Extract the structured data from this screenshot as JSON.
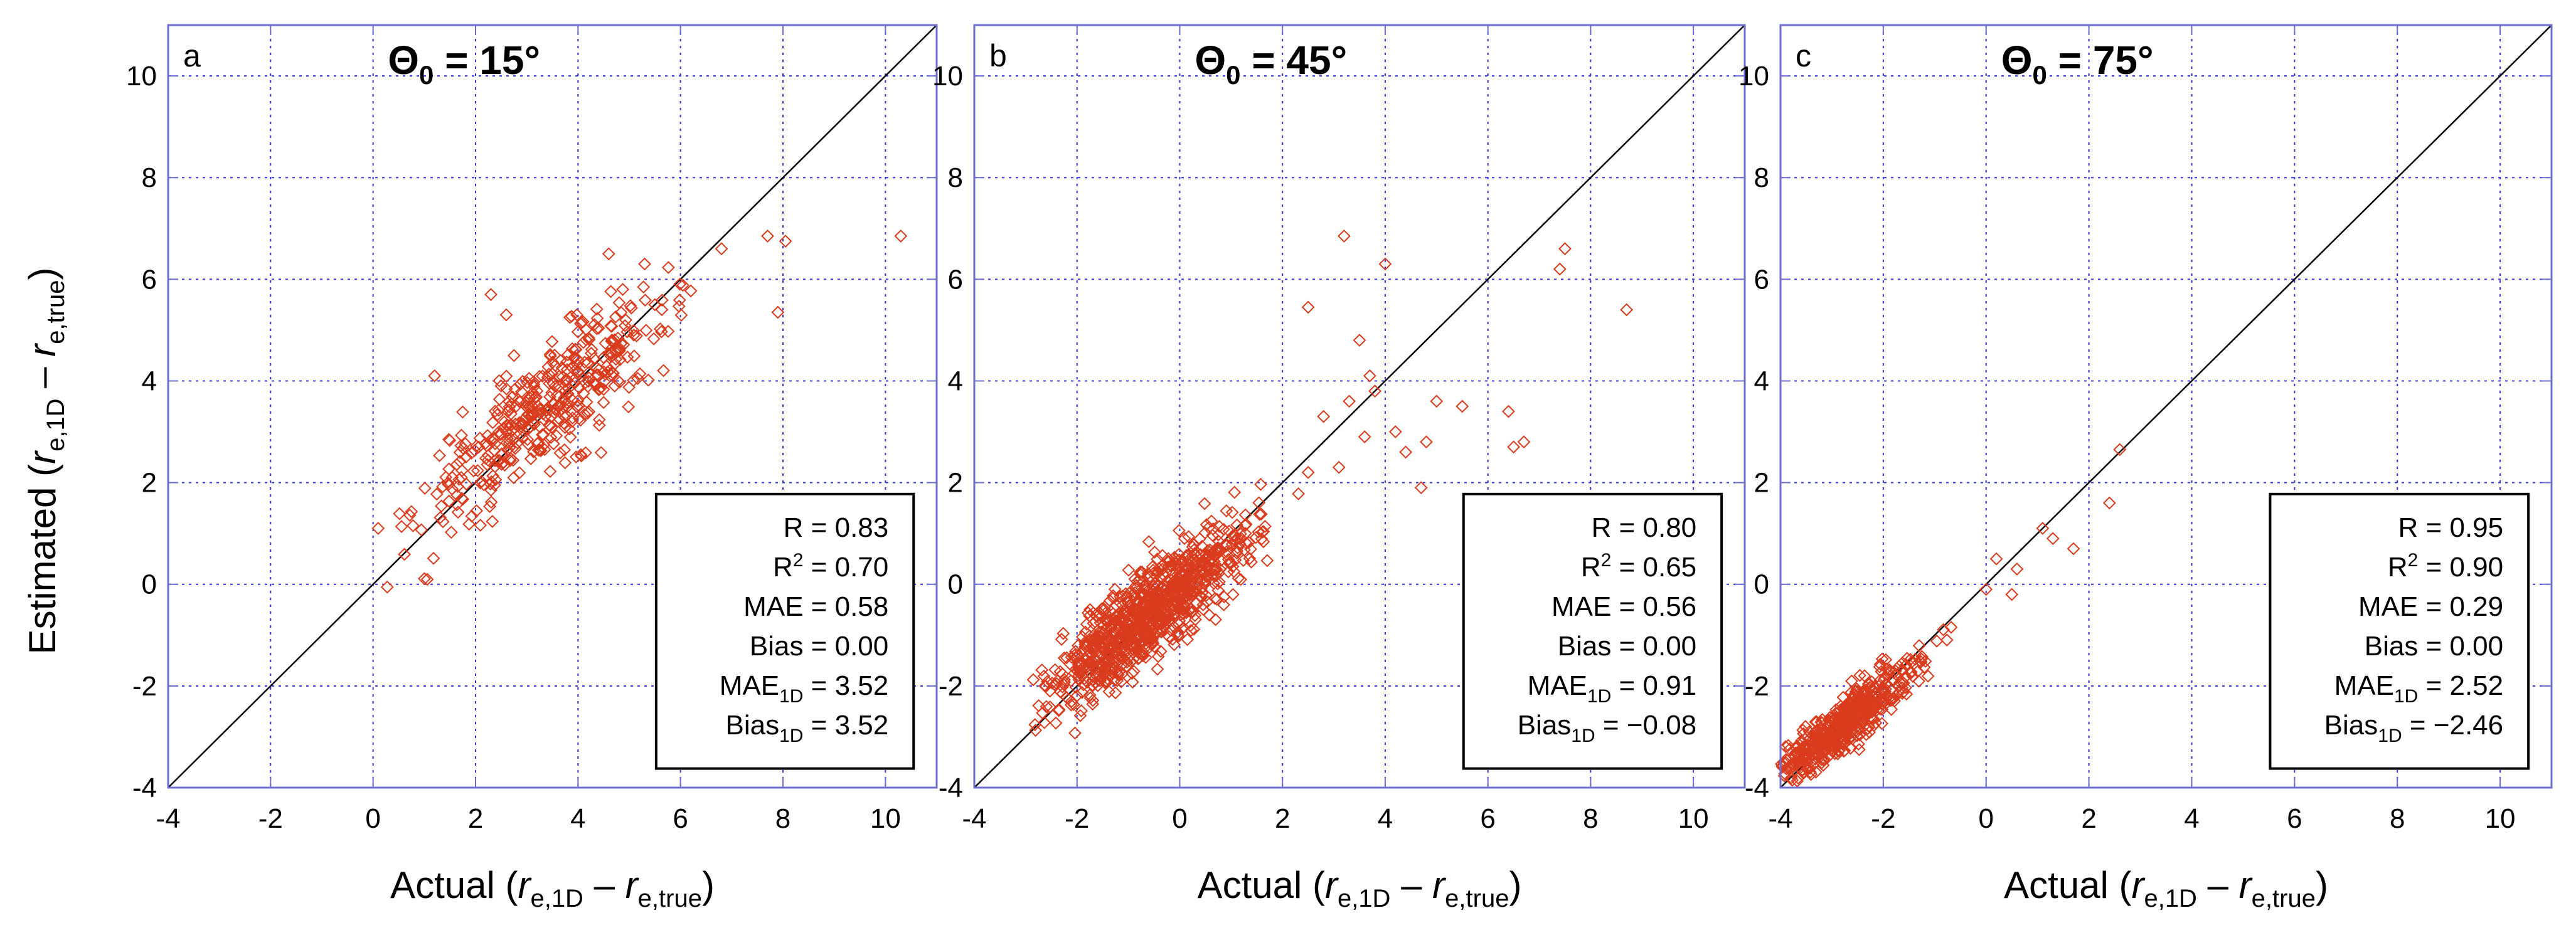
{
  "chart_data": [
    {
      "type": "scatter",
      "panel_letter": "a",
      "title_symbol": "Θ",
      "title_sub": "0",
      "title_value": " = 15°",
      "xlim": [
        -4,
        11
      ],
      "ylim": [
        -4,
        11
      ],
      "xticks": [
        -4,
        -2,
        0,
        2,
        4,
        6,
        8,
        10
      ],
      "yticks": [
        -4,
        -2,
        0,
        2,
        4,
        6,
        8,
        10
      ],
      "grid": true,
      "marker_color": "#d93b1c",
      "line_color": "#000000",
      "cluster": {
        "cx": 3.4,
        "cy": 3.5,
        "sx": 1.2,
        "spread": 0.55,
        "n": 420,
        "xmin": 0.2,
        "xmax": 7.2
      },
      "outliers": [
        [
          10.3,
          6.85
        ],
        [
          8.05,
          6.75
        ],
        [
          7.7,
          6.85
        ],
        [
          6.8,
          6.6
        ],
        [
          7.9,
          5.35
        ],
        [
          2.3,
          5.7
        ],
        [
          2.6,
          5.3
        ],
        [
          1.2,
          4.1
        ],
        [
          0.1,
          1.1
        ],
        [
          4.6,
          6.5
        ],
        [
          5.3,
          6.3
        ]
      ],
      "stats": [
        {
          "label": "R",
          "sub": "",
          "sup": "",
          "value": "0.83"
        },
        {
          "label": "R",
          "sub": "",
          "sup": "2",
          "value": "0.70"
        },
        {
          "label": "MAE",
          "sub": "",
          "sup": "",
          "value": "0.58"
        },
        {
          "label": "Bias",
          "sub": "",
          "sup": "",
          "value": "0.00"
        },
        {
          "label": "MAE",
          "sub": "1D",
          "sup": "",
          "value": "3.52"
        },
        {
          "label": "Bias",
          "sub": "1D",
          "sup": "",
          "value": "3.52"
        }
      ]
    },
    {
      "type": "scatter",
      "panel_letter": "b",
      "title_symbol": "Θ",
      "title_sub": "0",
      "title_value": " = 45°",
      "xlim": [
        -4,
        11
      ],
      "ylim": [
        -4,
        11
      ],
      "xticks": [
        -4,
        -2,
        0,
        2,
        4,
        6,
        8,
        10
      ],
      "yticks": [
        -4,
        -2,
        0,
        2,
        4,
        6,
        8,
        10
      ],
      "grid": true,
      "marker_color": "#d93b1c",
      "line_color": "#000000",
      "cluster": {
        "cx": -0.6,
        "cy": -0.6,
        "sx": 0.9,
        "spread": 0.45,
        "n": 900,
        "xmin": -3.1,
        "xmax": 2.8
      },
      "outliers": [
        [
          3.2,
          6.85
        ],
        [
          4.0,
          6.3
        ],
        [
          7.5,
          6.6
        ],
        [
          7.4,
          6.2
        ],
        [
          8.7,
          5.4
        ],
        [
          2.5,
          5.45
        ],
        [
          3.5,
          4.8
        ],
        [
          3.7,
          4.1
        ],
        [
          3.3,
          3.6
        ],
        [
          4.2,
          3.0
        ],
        [
          5.0,
          3.6
        ],
        [
          5.5,
          3.5
        ],
        [
          6.4,
          3.4
        ],
        [
          6.5,
          2.7
        ],
        [
          6.7,
          2.8
        ],
        [
          4.7,
          1.9
        ],
        [
          4.4,
          2.6
        ],
        [
          3.6,
          2.9
        ],
        [
          2.5,
          2.2
        ],
        [
          3.1,
          2.3
        ],
        [
          4.8,
          2.8
        ],
        [
          2.8,
          3.3
        ],
        [
          3.8,
          3.8
        ]
      ],
      "stats": [
        {
          "label": "R",
          "sub": "",
          "sup": "",
          "value": "0.80"
        },
        {
          "label": "R",
          "sub": "",
          "sup": "2",
          "value": "0.65"
        },
        {
          "label": "MAE",
          "sub": "",
          "sup": "",
          "value": "0.56"
        },
        {
          "label": "Bias",
          "sub": "",
          "sup": "",
          "value": "0.00"
        },
        {
          "label": "MAE",
          "sub": "1D",
          "sup": "",
          "value": "0.91"
        },
        {
          "label": "Bias",
          "sub": "1D",
          "sup": "",
          "value": "−0.08"
        }
      ]
    },
    {
      "type": "scatter",
      "panel_letter": "c",
      "title_symbol": "Θ",
      "title_sub": "0",
      "title_value": " = 75°",
      "xlim": [
        -4,
        11
      ],
      "ylim": [
        -4,
        11
      ],
      "xticks": [
        -4,
        -2,
        0,
        2,
        4,
        6,
        8,
        10
      ],
      "yticks": [
        -4,
        -2,
        0,
        2,
        4,
        6,
        8,
        10
      ],
      "grid": true,
      "marker_color": "#d93b1c",
      "line_color": "#000000",
      "cluster": {
        "cx": -2.8,
        "cy": -2.8,
        "sx": 0.75,
        "spread": 0.25,
        "n": 520,
        "xmin": -4.0,
        "xmax": 0.3
      },
      "outliers": [
        [
          2.6,
          2.65
        ],
        [
          2.4,
          1.6
        ],
        [
          1.7,
          0.7
        ],
        [
          1.3,
          0.9
        ],
        [
          1.1,
          1.1
        ],
        [
          0.6,
          0.3
        ],
        [
          0.2,
          0.5
        ],
        [
          0.0,
          -0.1
        ],
        [
          0.5,
          -0.2
        ]
      ],
      "stats": [
        {
          "label": "R",
          "sub": "",
          "sup": "",
          "value": "0.95"
        },
        {
          "label": "R",
          "sub": "",
          "sup": "2",
          "value": "0.90"
        },
        {
          "label": "MAE",
          "sub": "",
          "sup": "",
          "value": "0.29"
        },
        {
          "label": "Bias",
          "sub": "",
          "sup": "",
          "value": "0.00"
        },
        {
          "label": "MAE",
          "sub": "1D",
          "sup": "",
          "value": "2.52"
        },
        {
          "label": "Bias",
          "sub": "1D",
          "sup": "",
          "value": "−2.46"
        }
      ]
    }
  ],
  "axis_labels": {
    "x_prefix": "Actual (",
    "x_r1": "r",
    "x_r1_sub": "e,1D",
    "x_minus": " – ",
    "x_r2": "r",
    "x_r2_sub": "e,true",
    "x_suffix": ")",
    "y_prefix": "Estimated (",
    "y_r1": "r",
    "y_r1_sub": "e,1D",
    "y_minus": " – ",
    "y_r2": "r",
    "y_r2_sub": "e,true",
    "y_suffix": ")"
  },
  "colors": {
    "grid": "#3333dd",
    "frame": "#6e6ecf",
    "marker": "#d93b1c"
  }
}
